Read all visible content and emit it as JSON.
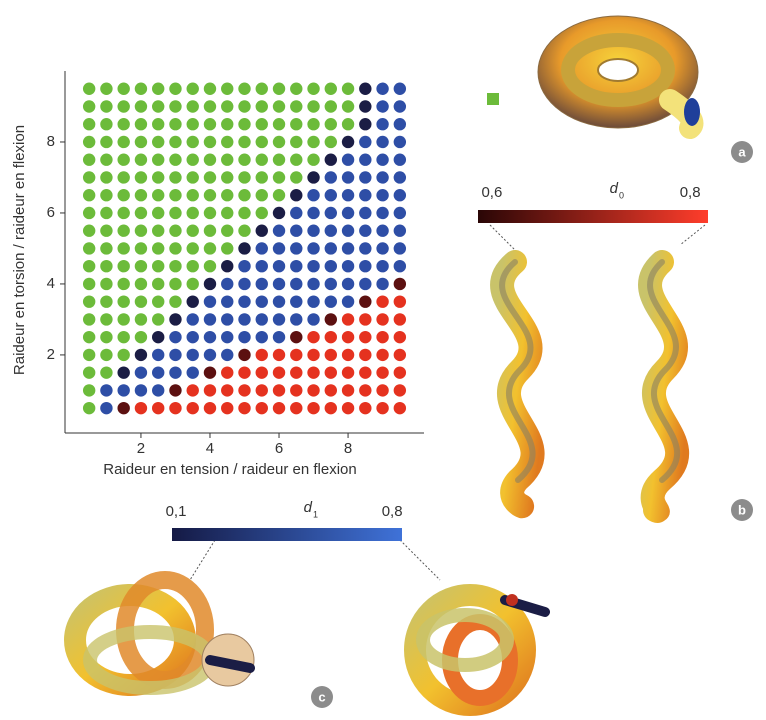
{
  "chart_data": {
    "type": "scatter",
    "x_label": "Raideur en tension / raideur en flexion",
    "y_label": "Raideur en torsion / raideur en flexion",
    "x": [
      0.5,
      1,
      1.5,
      2,
      2.5,
      3,
      3.5,
      4,
      4.5,
      5,
      5.5,
      6,
      6.5,
      7,
      7.5,
      8,
      8.5,
      9,
      9.5
    ],
    "y": [
      0.5,
      1,
      1.5,
      2,
      2.5,
      3,
      3.5,
      4,
      4.5,
      5,
      5.5,
      6,
      6.5,
      7,
      7.5,
      8,
      8.5,
      9,
      9.5
    ],
    "phase_rows": [
      "gbdrrrrrrrrrrrrrrrr",
      "gbbbbdrrrrrrrrrrrrr",
      "ggnbbbbdrrrrrrrrrrr",
      "gggnbbbbbdrrrrrrrrr",
      "ggggnbbbbbbbdrrrrrr",
      "gggggnbbbbbbbbdrrrr",
      "ggggggnbbbbbbbbbdrr",
      "gggggggnbbbbbbbbbbd",
      "ggggggggnbbbbbbbbbb",
      "gggggggggnbbbbbbbbb",
      "ggggggggggnbbbbbbbb",
      "gggggggggggnbbbbbbb",
      "ggggggggggggnbbbbbb",
      "gggggggggggggnbbbbb",
      "ggggggggggggggnbbbb",
      "gggggggggggggggnbbb",
      "ggggggggggggggggnbb",
      "ggggggggggggggggnbb",
      "ggggggggggggggggnbb"
    ],
    "phase_colors": {
      "g": "#6cbb3a",
      "n": "#1b1d45",
      "b": "#2e4ea6",
      "d": "#5c1010",
      "r": "#e5321f"
    },
    "legend_phase": "g",
    "xlim": [
      -0.2,
      10.2
    ],
    "ylim": [
      -0.2,
      10
    ],
    "xticks": [
      2,
      4,
      6,
      8
    ],
    "yticks": [
      2,
      4,
      6,
      8
    ]
  },
  "colorbars": [
    {
      "symbol": "d",
      "subscript": "0",
      "lim": [
        0.586,
        0.818
      ],
      "colors": [
        "#2a0606",
        "#ff3d2b"
      ],
      "ticks": [
        {
          "value": 0.6,
          "label": "0,6"
        },
        {
          "value": 0.8,
          "label": "0,8"
        }
      ]
    },
    {
      "symbol": "d",
      "subscript": "1",
      "lim": [
        0.087,
        0.832
      ],
      "colors": [
        "#151a45",
        "#3f72d8"
      ],
      "ticks": [
        {
          "value": 0.1,
          "label": "0,1"
        },
        {
          "value": 0.8,
          "label": "0,8"
        }
      ]
    }
  ],
  "panels": [
    "a",
    "b",
    "c"
  ]
}
